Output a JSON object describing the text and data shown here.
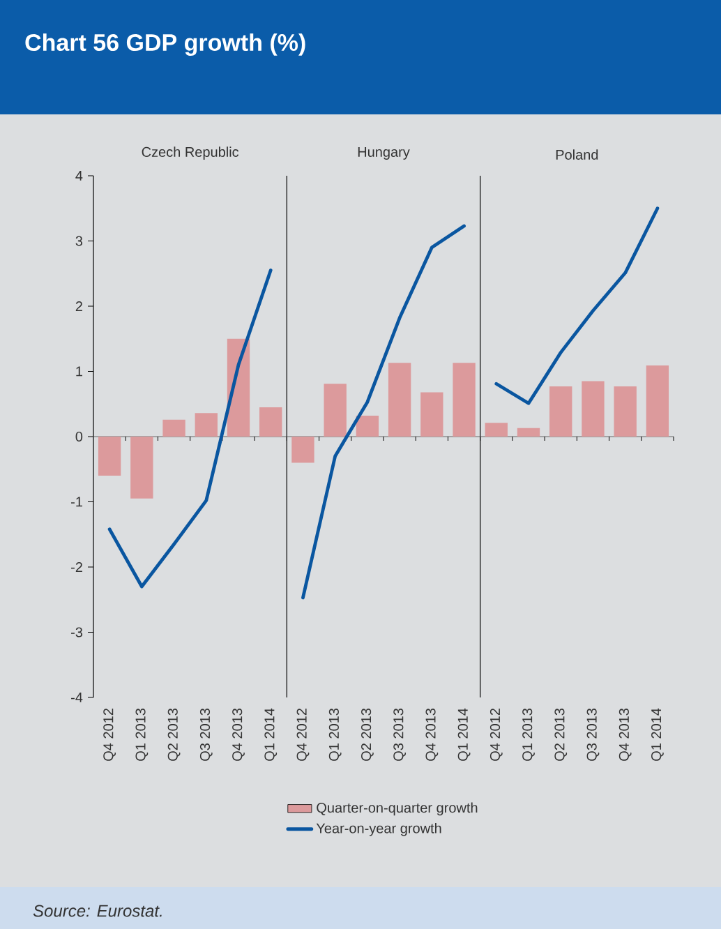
{
  "chart_data": [
    {
      "type": "bar",
      "title": "Czech Republic",
      "annotations": [
        "Chart 56 GDP growth (%)",
        "Source: Eurostat."
      ],
      "categories": [
        "Q4 2012",
        "Q1 2013",
        "Q2 2013",
        "Q3 2013",
        "Q4 2013",
        "Q1 2014"
      ],
      "series": [
        {
          "type": "bar",
          "color": "#dc9a9c",
          "values": [
            -0.6,
            -0.95,
            0.26,
            0.36,
            1.5,
            0.45
          ]
        },
        {
          "type": "line",
          "color": "#0a56a0",
          "values": [
            -1.42,
            -2.3,
            -1.65,
            -0.98,
            1.1,
            2.55
          ]
        }
      ],
      "ylim": [
        -4,
        4
      ],
      "yticks": [
        -4,
        -3,
        -2,
        -1,
        0,
        1,
        2,
        3,
        4
      ]
    },
    {
      "type": "bar",
      "title": "Hungary",
      "categories": [
        "Q4 2012",
        "Q1 2013",
        "Q2 2013",
        "Q3 2013",
        "Q4 2013",
        "Q1 2014"
      ],
      "series": [
        {
          "type": "bar",
          "name": "Quarter-on-quarter growth",
          "color": "#dc9a9c",
          "values": [
            -0.4,
            0.81,
            0.32,
            1.13,
            0.68,
            1.13
          ]
        },
        {
          "type": "line",
          "name": "Year-on-year growth",
          "color": "#0a56a0",
          "values": [
            -2.47,
            -0.3,
            0.53,
            1.82,
            2.9,
            3.23
          ]
        }
      ],
      "ylim": [
        -4,
        4
      ],
      "tick_labels": "x",
      "legend": "bottom"
    },
    {
      "type": "bar",
      "title": "Poland",
      "categories": [
        "Q4 2012",
        "Q1 2013",
        "Q2 2013",
        "Q3 2013",
        "Q4 2013",
        "Q1 2014"
      ],
      "series": [
        {
          "type": "bar",
          "color": "#dc9a9c",
          "values": [
            0.21,
            0.13,
            0.77,
            0.85,
            0.77,
            1.09
          ]
        },
        {
          "type": "line",
          "color": "#0a56a0",
          "values": [
            0.81,
            0.51,
            1.29,
            1.93,
            2.51,
            3.5
          ]
        }
      ],
      "ylim": [
        -4,
        4
      ],
      "tick_labels": "x"
    }
  ]
}
